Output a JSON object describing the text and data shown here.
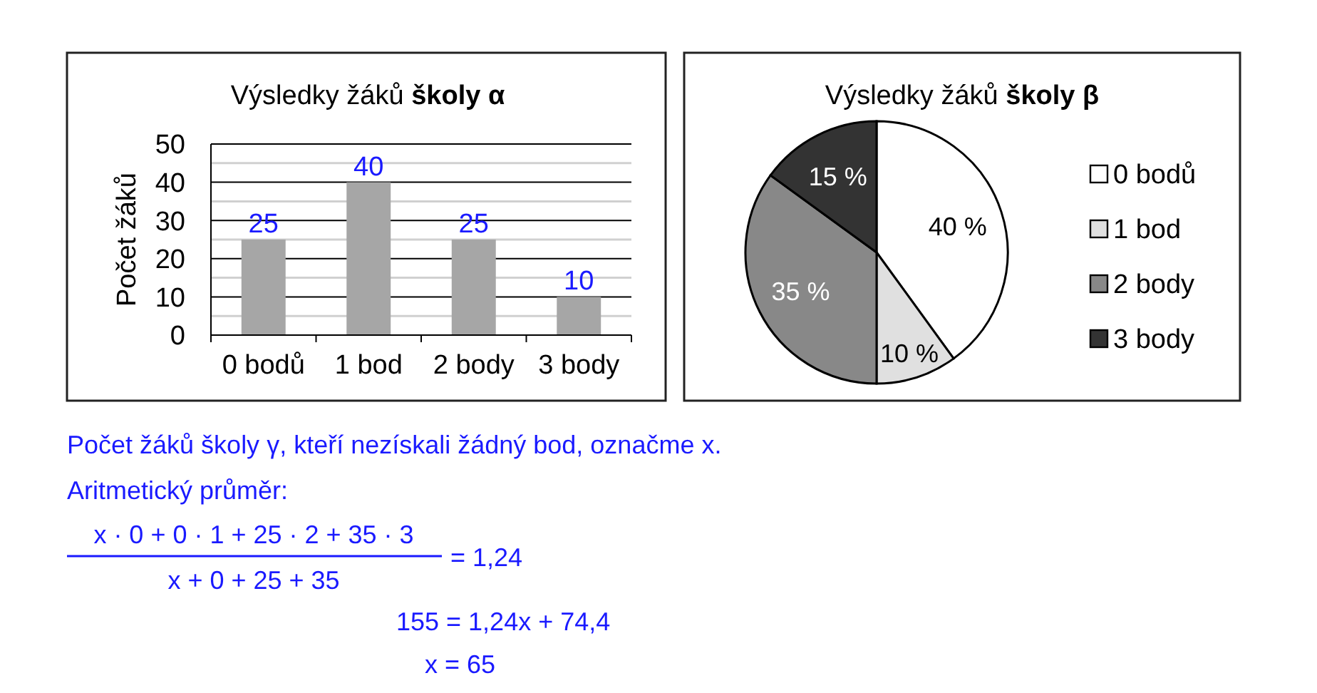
{
  "chart_data": [
    {
      "type": "bar",
      "title": "Výsledky žáků školy α",
      "ylabel": "Počet žáků",
      "categories": [
        "0 bodů",
        "1 bod",
        "2 body",
        "3 body"
      ],
      "values": [
        25,
        40,
        25,
        10
      ],
      "color": "#a6a6a6",
      "ylim": [
        0,
        50
      ],
      "yticks": [
        0,
        {
          "value": 5,
          "label": null
        },
        10,
        {
          "value": 15,
          "label": null
        },
        20,
        {
          "value": 25,
          "label": null
        },
        30,
        {
          "value": 35,
          "label": null
        },
        40,
        {
          "value": 45,
          "label": null
        },
        50
      ],
      "grid": "y",
      "data_labels": true,
      "annotations": [
        "Počet žáků školy γ, kteří nezískali žádný bod, označme x.",
        "Aritmetický průměr:",
        "x · 0 + 0 · 1 + 25 · 2 + 35 · 3",
        "x + 0 + 25 + 35",
        "= 1,24",
        "155 = 1,24x + 74,4",
        "x = 65"
      ]
    },
    {
      "type": "pie",
      "title": "Výsledky žáků školy β",
      "categories": [
        "0 bodů",
        "1 bod",
        "2 body",
        "3 body"
      ],
      "values": [
        40,
        10,
        35,
        15
      ],
      "colors": [
        "#ffffff",
        "#e0e0e0",
        "#888888",
        "#333333"
      ],
      "value_labels": [
        "40 %",
        "10 %",
        "35 %",
        "15 %"
      ],
      "legend": "right"
    }
  ]
}
